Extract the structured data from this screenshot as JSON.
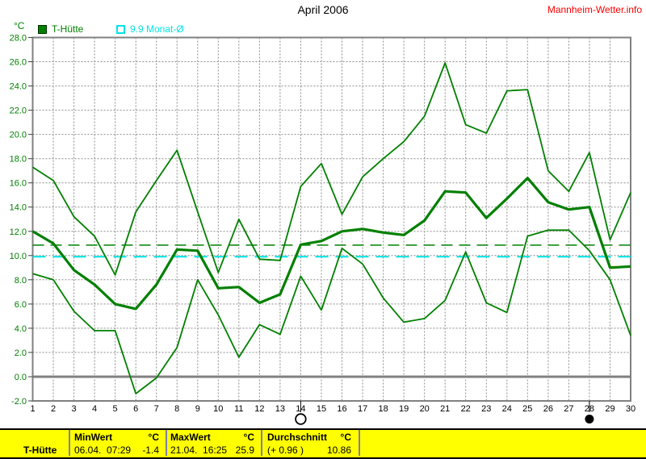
{
  "header": {
    "title": "April 2006",
    "site_link": "Mannheim-Wetter.info"
  },
  "legend": {
    "series1": "T-Hütte",
    "series2": "9.9 Monat-Ø"
  },
  "chart_data": {
    "type": "line",
    "title": "April 2006",
    "ylabel": "°C",
    "ylim": [
      -2,
      28
    ],
    "ytick_step": 2,
    "grid": true,
    "legend_position": "top",
    "line_color": "#008000",
    "x": [
      1,
      2,
      3,
      4,
      5,
      6,
      7,
      8,
      9,
      10,
      11,
      12,
      13,
      14,
      15,
      16,
      17,
      18,
      19,
      20,
      21,
      22,
      23,
      24,
      25,
      26,
      27,
      28,
      29,
      30
    ],
    "xtick_labels": [
      "1",
      "2",
      "3",
      "4",
      "5",
      "6",
      "7",
      "8",
      "9",
      "10",
      "11",
      "12",
      "13",
      "14",
      "15",
      "16",
      "17",
      "18",
      "19",
      "20",
      "21",
      "22",
      "23",
      "24",
      "25",
      "26",
      "27",
      "28",
      "29",
      "30"
    ],
    "ytick_labels": [
      "28.0",
      "26.0",
      "24.0",
      "22.0",
      "20.0",
      "18.0",
      "16.0",
      "14.0",
      "12.0",
      "10.0",
      "8.0",
      "6.0",
      "4.0",
      "2.0",
      "0.0",
      "-2.0"
    ],
    "series": [
      {
        "name": "T-Hütte max",
        "values": [
          17.3,
          16.2,
          13.2,
          11.6,
          8.4,
          13.6,
          16.2,
          18.7,
          13.6,
          8.6,
          13.0,
          9.7,
          9.6,
          15.7,
          17.6,
          13.4,
          16.5,
          18.0,
          19.4,
          21.5,
          25.9,
          20.8,
          20.1,
          23.6,
          23.7,
          17.0,
          15.3,
          18.5,
          11.3,
          15.2
        ],
        "width": 1.8
      },
      {
        "name": "T-Hütte mean",
        "values": [
          12.0,
          11.0,
          8.8,
          7.6,
          6.0,
          5.6,
          7.6,
          10.5,
          10.4,
          7.3,
          7.4,
          6.1,
          6.8,
          10.9,
          11.2,
          12.0,
          12.2,
          11.9,
          11.7,
          12.9,
          15.3,
          15.2,
          13.1,
          14.7,
          16.4,
          14.4,
          13.8,
          14.0,
          9.0,
          9.1
        ],
        "width": 3.2
      },
      {
        "name": "T-Hütte min",
        "values": [
          8.5,
          8.0,
          5.4,
          3.8,
          3.8,
          -1.4,
          -0.1,
          2.4,
          8.0,
          5.1,
          1.6,
          4.3,
          3.5,
          8.3,
          5.5,
          10.6,
          9.3,
          6.5,
          4.5,
          4.8,
          6.3,
          10.3,
          6.1,
          5.3,
          11.6,
          12.1,
          12.1,
          10.4,
          8.0,
          3.4
        ],
        "width": 1.8
      }
    ],
    "reference_lines": [
      {
        "name": "Durchschnitt",
        "value": 10.86,
        "color": "#008000",
        "dash": "14 8",
        "width": 1.5
      },
      {
        "name": "Monat-Durchschnitt",
        "value": 9.9,
        "color": "#00e4e4",
        "dash": "16 9",
        "width": 2
      }
    ],
    "markers": [
      {
        "day": 14,
        "type": "full-moon"
      },
      {
        "day": 28,
        "type": "new-moon"
      }
    ]
  },
  "colors": {
    "line": "#008000",
    "grid": "#8c8c8c",
    "border": "#808080",
    "site_link": "#ff0000",
    "table_bg": "#ffff00",
    "cyan": "#00e4e4"
  },
  "footer": {
    "row_label": "T-Hütte",
    "min": {
      "header": "MinWert",
      "unit": "°C",
      "timestamp": "06.04.  07:29",
      "value": "-1.4"
    },
    "max": {
      "header": "MaxWert",
      "unit": "°C",
      "timestamp": "21.04.  16:25",
      "value": "25.9"
    },
    "avg": {
      "header": "Durchschnitt",
      "unit": "°C",
      "delta": "(+ 0.96 )",
      "value": "10.86"
    }
  }
}
